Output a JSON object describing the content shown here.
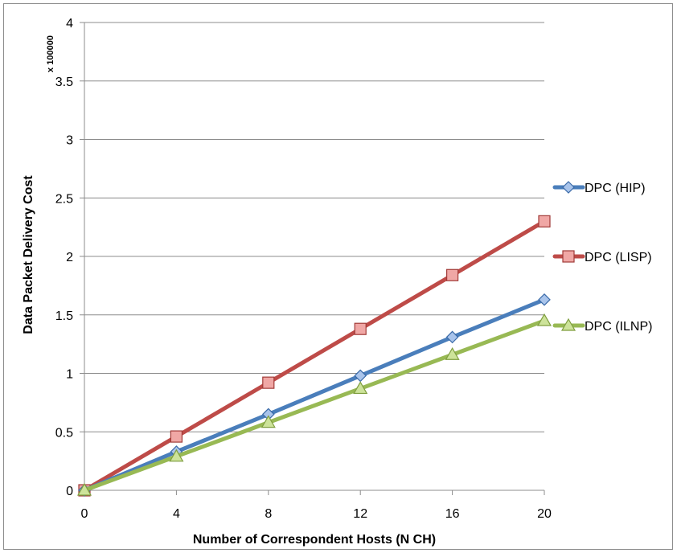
{
  "chart_data": {
    "type": "line",
    "xlabel": "Number of Correspondent Hosts (N CH)",
    "ylabel": "Data Packet Delivery Cost",
    "y_multiplier_label": "x 100000",
    "x": [
      0,
      4,
      8,
      12,
      16,
      20
    ],
    "x_ticks": [
      "0",
      "4",
      "8",
      "12",
      "16",
      "20"
    ],
    "y_ticks": [
      "0",
      "0.5",
      "1",
      "1.5",
      "2",
      "2.5",
      "3",
      "3.5",
      "4"
    ],
    "ylim": [
      0,
      4
    ],
    "xlim": [
      0,
      20
    ],
    "grid": "horizontal",
    "legend_position": "right",
    "series": [
      {
        "name": "DPC (HIP)",
        "color": "#4a7ebb",
        "marker": "diamond",
        "values": [
          0,
          0.33,
          0.65,
          0.98,
          1.31,
          1.63
        ]
      },
      {
        "name": "DPC (LISP)",
        "color": "#be4b48",
        "marker": "square",
        "values": [
          0,
          0.46,
          0.92,
          1.38,
          1.84,
          2.3
        ]
      },
      {
        "name": "DPC (ILNP)",
        "color": "#98b954",
        "marker": "triangle",
        "values": [
          0,
          0.29,
          0.58,
          0.87,
          1.16,
          1.45
        ]
      }
    ]
  }
}
